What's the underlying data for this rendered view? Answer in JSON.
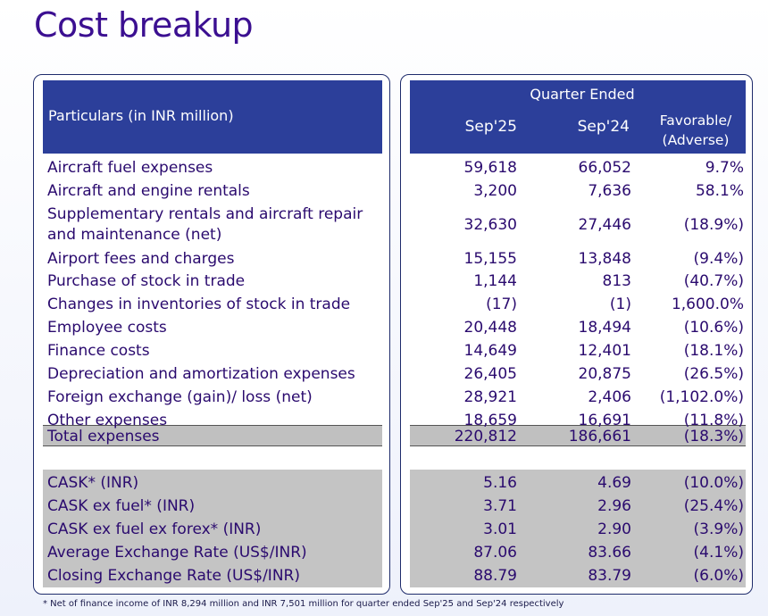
{
  "title": "Cost breakup",
  "header": {
    "particulars": "Particulars (in INR million)",
    "quarter_ended": "Quarter Ended",
    "col1": "Sep'25",
    "col2": "Sep'24",
    "col3_line1": "Favorable/",
    "col3_line2": "(Adverse)"
  },
  "rows": [
    {
      "label": "Aircraft fuel expenses",
      "v1": "59,618",
      "v2": "66,052",
      "v3": "9.7%"
    },
    {
      "label": "Aircraft and engine rentals",
      "v1": "3,200",
      "v2": "7,636",
      "v3": "58.1%"
    },
    {
      "label": "Supplementary rentals and aircraft repair",
      "label2": "and maintenance (net)",
      "v1": "32,630",
      "v2": "27,446",
      "v3": "(18.9%)"
    },
    {
      "label": "Airport fees and charges",
      "v1": "15,155",
      "v2": "13,848",
      "v3": "(9.4%)"
    },
    {
      "label": "Purchase of stock in trade",
      "v1": "1,144",
      "v2": "813",
      "v3": "(40.7%)"
    },
    {
      "label": "Changes in inventories of stock in trade",
      "v1": "(17)",
      "v2": "(1)",
      "v3": "1,600.0%"
    },
    {
      "label": "Employee costs",
      "v1": "20,448",
      "v2": "18,494",
      "v3": "(10.6%)"
    },
    {
      "label": "Finance costs",
      "v1": "14,649",
      "v2": "12,401",
      "v3": "(18.1%)"
    },
    {
      "label": "Depreciation and amortization expenses",
      "v1": "26,405",
      "v2": "20,875",
      "v3": "(26.5%)"
    },
    {
      "label": "Foreign exchange (gain)/ loss (net)",
      "v1": "28,921",
      "v2": "2,406",
      "v3": "(1,102.0%)"
    },
    {
      "label": "Other expenses",
      "v1": "18,659",
      "v2": "16,691",
      "v3": "(11.8%)"
    }
  ],
  "total": {
    "label": "Total expenses",
    "v1": "220,812",
    "v2": "186,661",
    "v3": "(18.3%)"
  },
  "kpis": [
    {
      "label": "CASK* (INR)",
      "v1": "5.16",
      "v2": "4.69",
      "v3": "(10.0%)"
    },
    {
      "label": "CASK ex fuel* (INR)",
      "v1": "3.71",
      "v2": "2.96",
      "v3": "(25.4%)"
    },
    {
      "label": "CASK ex fuel ex forex* (INR)",
      "v1": "3.01",
      "v2": "2.90",
      "v3": "(3.9%)"
    },
    {
      "label": "Average Exchange Rate (US$/INR)",
      "v1": "87.06",
      "v2": "83.66",
      "v3": "(4.1%)"
    },
    {
      "label": "Closing Exchange Rate (US$/INR)",
      "v1": "88.79",
      "v2": "83.79",
      "v3": "(6.0%)"
    }
  ],
  "footnote": "* Net of finance income of INR 8,294 million and INR 7,501 million for quarter ended Sep'25 and Sep'24 respectively"
}
